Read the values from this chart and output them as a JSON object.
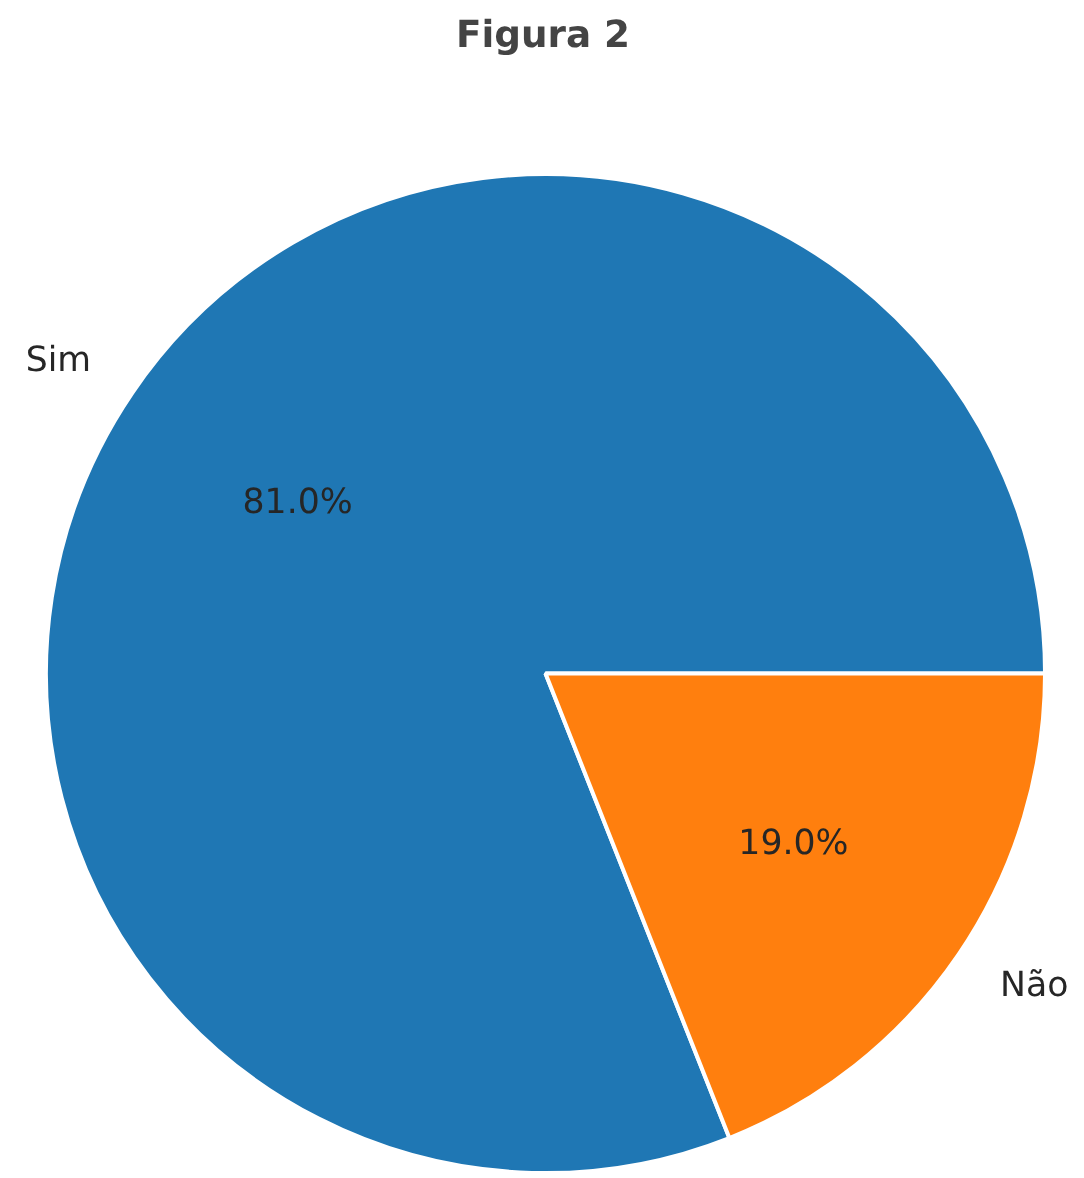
{
  "chart_data": {
    "type": "pie",
    "title": "Figura 2",
    "categories": [
      "Sim",
      "Não"
    ],
    "values": [
      81.0,
      19.0
    ],
    "colors": [
      "#1f77b4",
      "#ff7f0e"
    ],
    "value_labels": [
      "81.0%",
      "19.0%"
    ]
  }
}
